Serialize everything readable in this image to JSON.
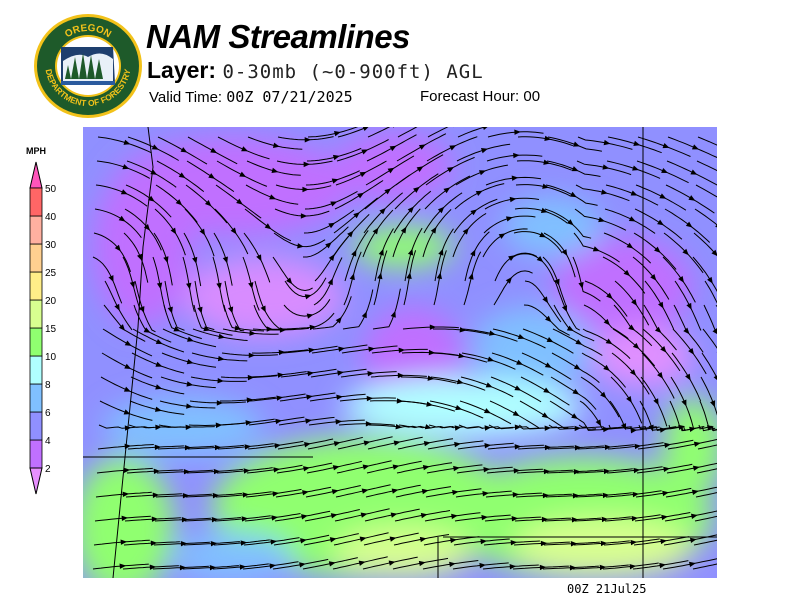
{
  "logo": {
    "text_top": "OREGON",
    "text_bottom": "DEPARTMENT OF FORESTRY",
    "colors": {
      "ring": "#1e5a2a",
      "gold": "#f2c21a"
    }
  },
  "header": {
    "title": "NAM Streamlines",
    "layer_label": "Layer:",
    "layer_value": "0-30mb (~0-900ft) AGL",
    "valid_label": "Valid Time:",
    "valid_value": "00Z 07/21/2025",
    "forecast_label": "Forecast Hour:",
    "forecast_value": "00"
  },
  "legend": {
    "unit": "MPH",
    "bins": [
      {
        "label": "2",
        "color": "#c070ff"
      },
      {
        "label": "4",
        "color": "#9090ff"
      },
      {
        "label": "6",
        "color": "#80c0ff"
      },
      {
        "label": "8",
        "color": "#b0ffff"
      },
      {
        "label": "10",
        "color": "#90ff70"
      },
      {
        "label": "15",
        "color": "#d8ff90"
      },
      {
        "label": "20",
        "color": "#ffee88"
      },
      {
        "label": "25",
        "color": "#ffd090"
      },
      {
        "label": "30",
        "color": "#ffb0a0"
      },
      {
        "label": "40",
        "color": "#ff6666"
      },
      {
        "label": "50",
        "color": "#ff55bb"
      }
    ],
    "below_color": "#e890ff"
  },
  "map": {
    "stamp": "00Z 21Jul25"
  }
}
